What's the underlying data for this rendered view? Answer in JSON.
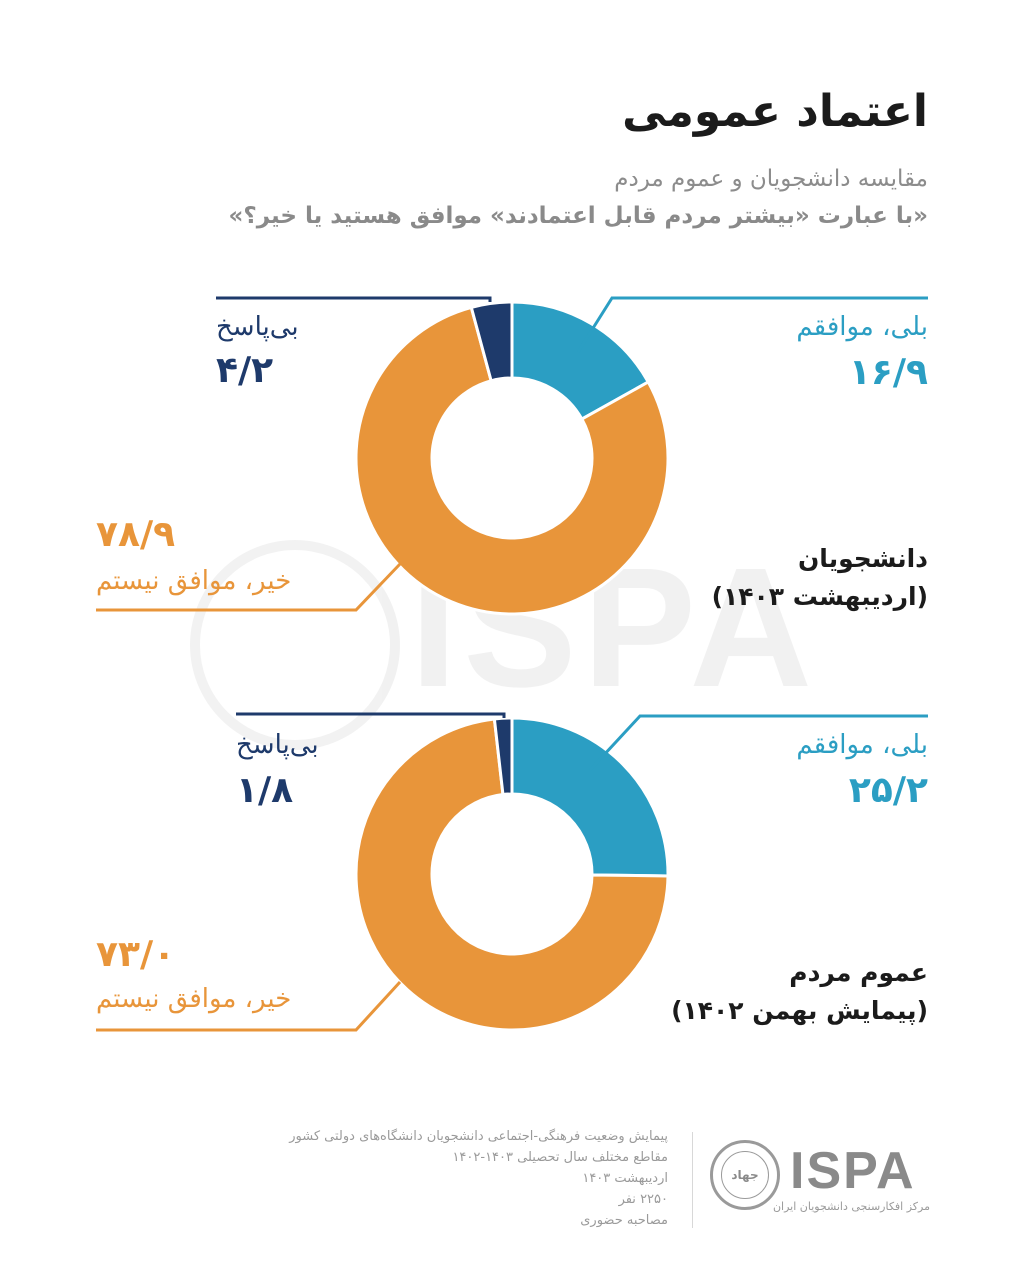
{
  "title": "اعتماد عمومی",
  "subtitle": "مقایسه دانشجویان و عموم مردم",
  "question": "«با عبارت «بیشتر مردم قابل اعتمادند» موافق هستید یا خیر؟»",
  "colors": {
    "yes": "#2b9ec3",
    "no": "#e8953a",
    "no_answer": "#1e3a6b"
  },
  "chart_data": [
    {
      "type": "pie",
      "variant": "donut",
      "title": "دانشجویان",
      "subtitle": "(اردیبهشت ۱۴۰۳)",
      "categories": [
        "بلی، موافقم",
        "خیر، موافق نیستم",
        "بی‌پاسخ"
      ],
      "values": [
        16.9,
        78.9,
        4.2
      ],
      "value_labels": [
        "۱۶/۹",
        "۷۸/۹",
        "۴/۲"
      ],
      "colors": [
        "#2b9ec3",
        "#e8953a",
        "#1e3a6b"
      ]
    },
    {
      "type": "pie",
      "variant": "donut",
      "title": "عموم مردم",
      "subtitle": "(پیمایش بهمن ۱۴۰۲)",
      "categories": [
        "بلی، موافقم",
        "خیر، موافق نیستم",
        "بی‌پاسخ"
      ],
      "values": [
        25.2,
        73.0,
        1.8
      ],
      "value_labels": [
        "۲۵/۲",
        "۷۳/۰",
        "۱/۸"
      ],
      "colors": [
        "#2b9ec3",
        "#e8953a",
        "#1e3a6b"
      ]
    }
  ],
  "footer": {
    "notes": [
      "پیمایش وضعیت فرهنگی-اجتماعی دانشجویان دانشگاه‌های دولتی کشور",
      "مقاطع مختلف سال تحصیلی ۱۴۰۳-۱۴۰۲",
      "اردیبهشت ۱۴۰۳",
      "۲۲۵۰ نفر",
      "مصاحبه حضوری"
    ],
    "seal_text": "جهاد",
    "brand": "ISPA",
    "brand_sub": "مرکز افکارسنجی دانشجویان ایران"
  },
  "watermark": "ISPA"
}
